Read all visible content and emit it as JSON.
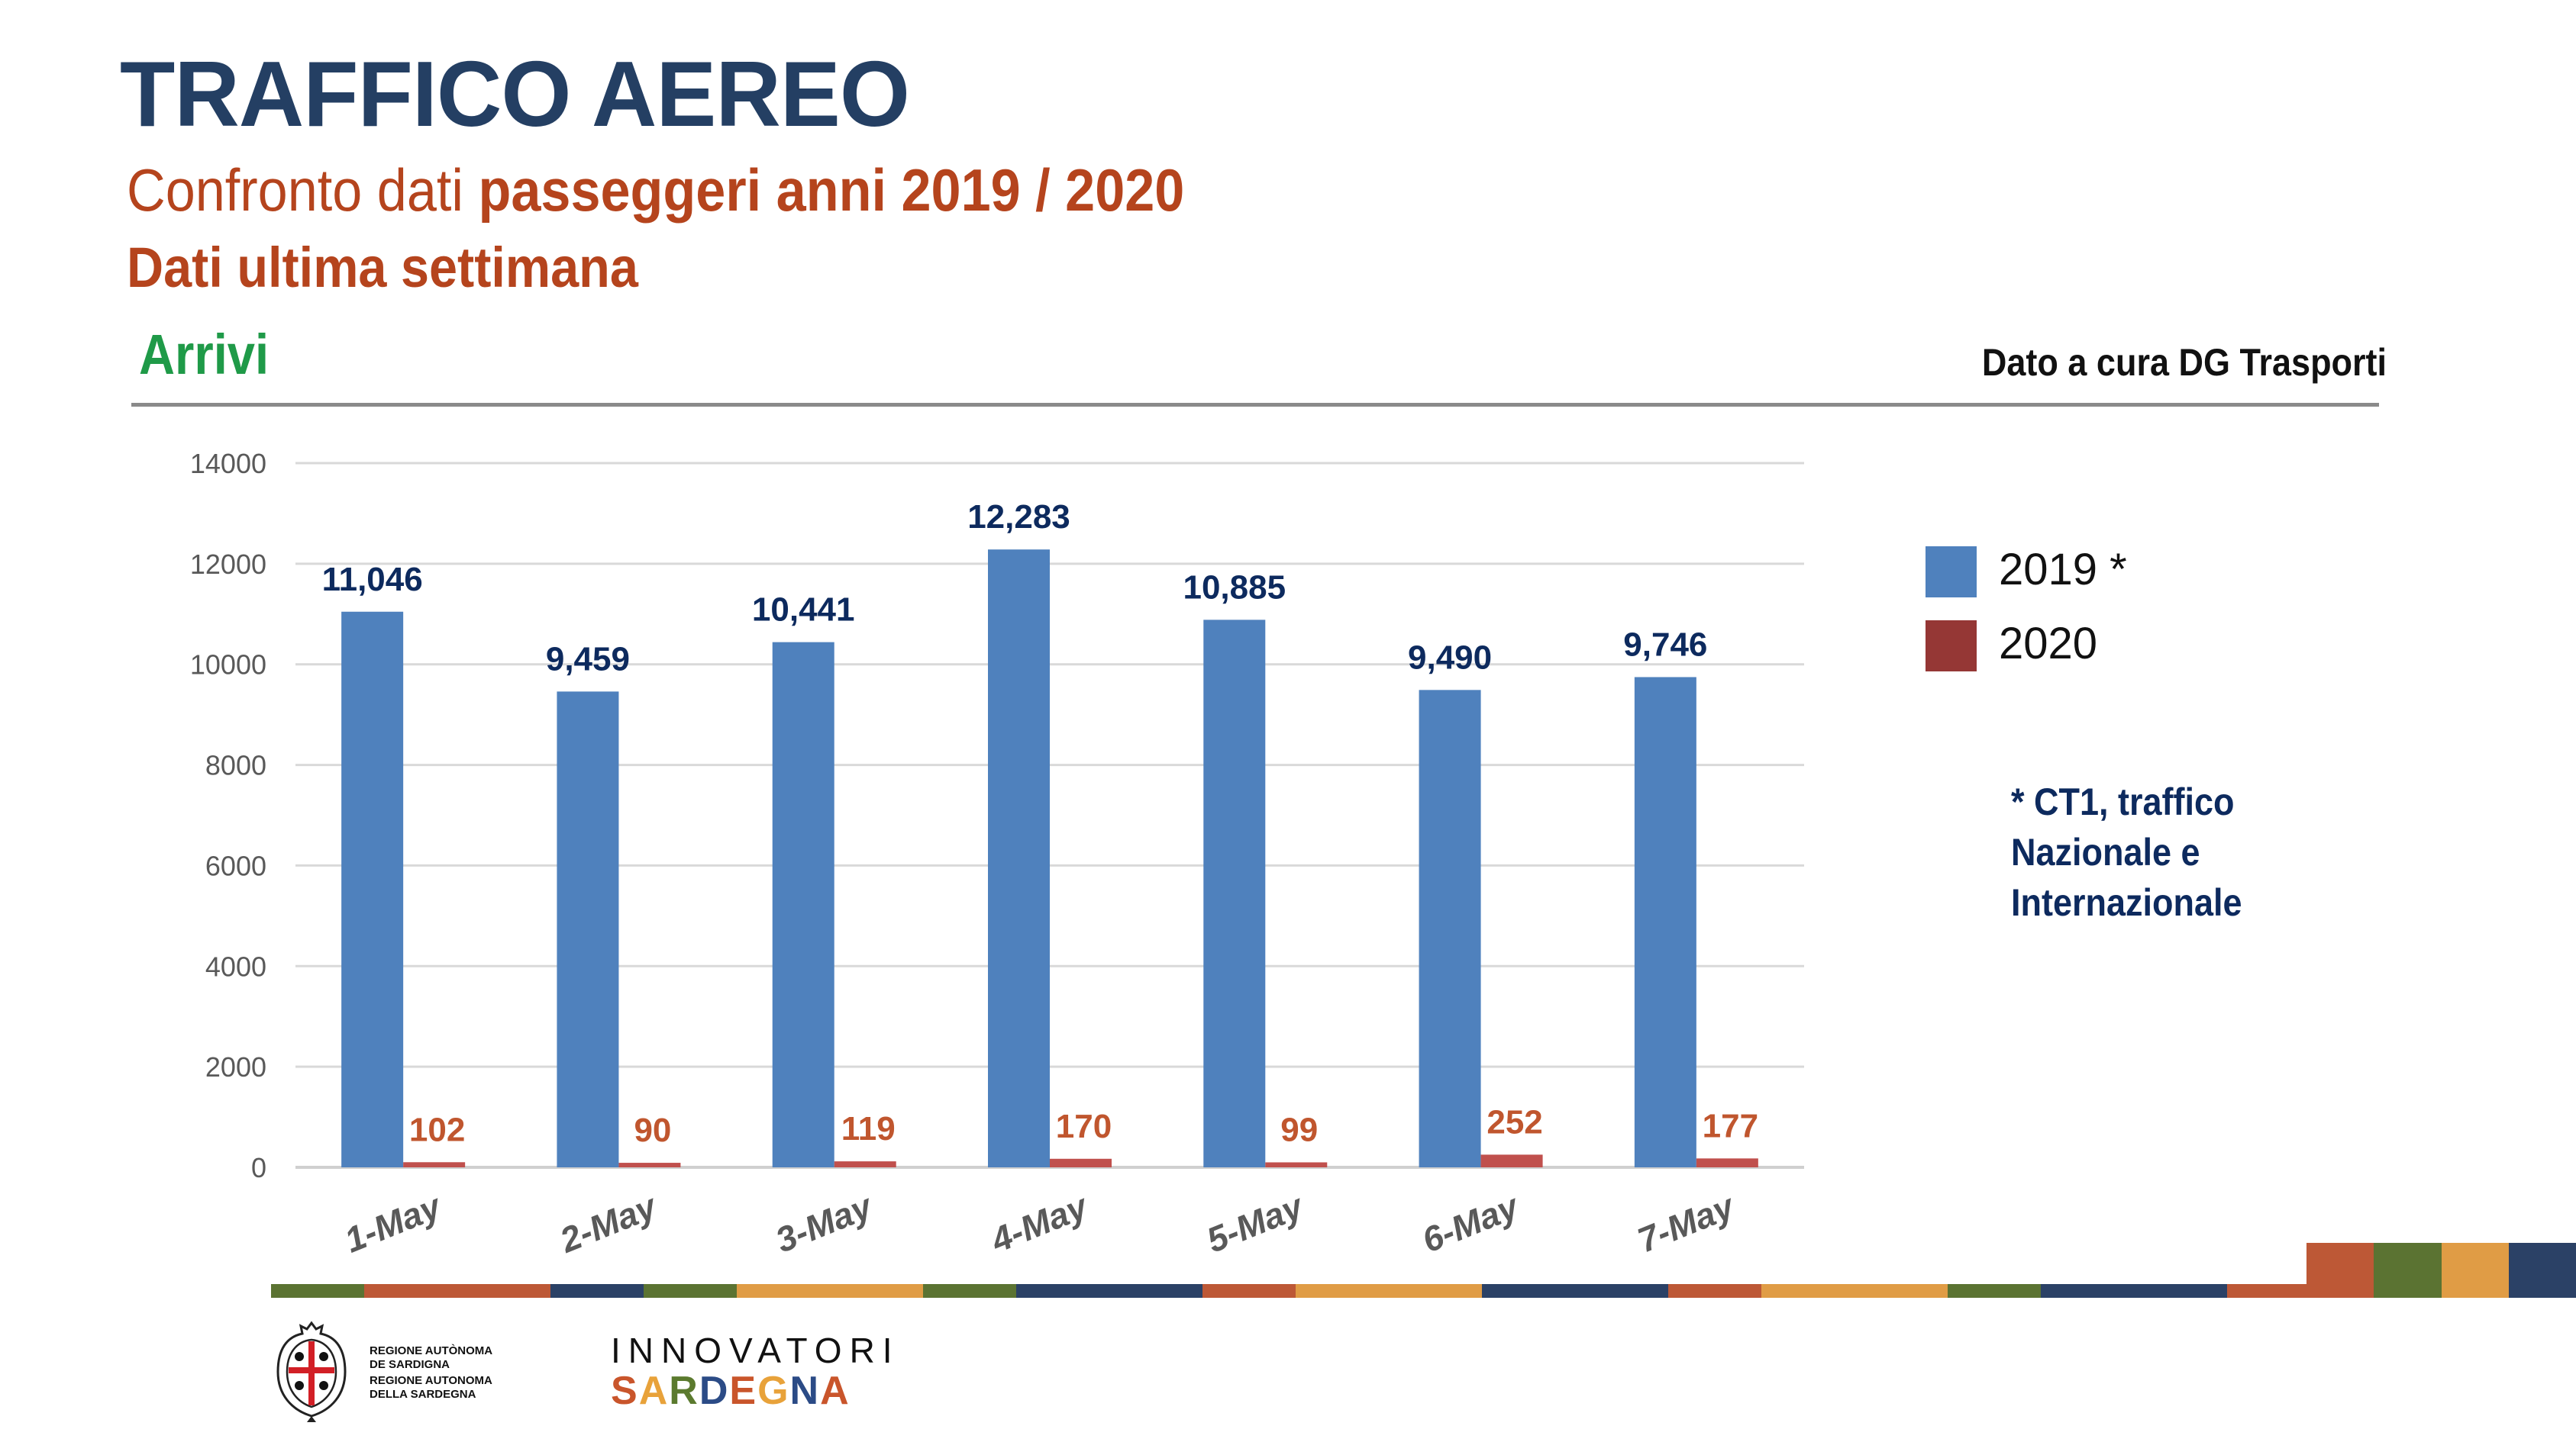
{
  "header": {
    "title": "TRAFFICO AEREO",
    "subtitle_light": "Confronto dati ",
    "subtitle_bold": "passeggeri anni 2019 / 2020",
    "subtitle2": "Dati ultima settimana",
    "section": "Arrivi",
    "credit": "Dato a cura DG Trasporti"
  },
  "colors": {
    "title": "#243f63",
    "subtitle": "#b5441d",
    "section": "#1f9a48",
    "series_2019": "#4f81bd",
    "series_2020": "#c0504d",
    "legend_2020": "#953735",
    "label_2019": "#0d2a5e",
    "label_2020": "#c0562e"
  },
  "legend": {
    "items": [
      {
        "label": "2019 *",
        "color": "#4f81bd"
      },
      {
        "label": "2020",
        "color": "#953735"
      }
    ]
  },
  "footnote": {
    "lines": [
      "* CT1, traffico",
      "Nazionale e",
      "Internazionale"
    ]
  },
  "chart_data": {
    "type": "bar",
    "title": "Arrivi",
    "xlabel": "",
    "ylabel": "",
    "categories": [
      "1-May",
      "2-May",
      "3-May",
      "4-May",
      "5-May",
      "6-May",
      "7-May"
    ],
    "series": [
      {
        "name": "2019 *",
        "values": [
          11046,
          9459,
          10441,
          12283,
          10885,
          9490,
          9746
        ],
        "labels": [
          "11,046",
          "9,459",
          "10,441",
          "12,283",
          "10,885",
          "9,490",
          "9,746"
        ]
      },
      {
        "name": "2020",
        "values": [
          102,
          90,
          119,
          170,
          99,
          252,
          177
        ],
        "labels": [
          "102",
          "90",
          "119",
          "170",
          "99",
          "252",
          "177"
        ]
      }
    ],
    "ylim": [
      0,
      14000
    ],
    "yticks": [
      0,
      2000,
      4000,
      6000,
      8000,
      10000,
      12000,
      14000
    ],
    "grid": true,
    "legend_position": "right"
  },
  "footer": {
    "stripe_colors": [
      "#5b7332",
      "#bd5836",
      "#bd5836",
      "#2b4166",
      "#5b7332",
      "#e09c45",
      "#e09c45",
      "#5b7332",
      "#2b4166",
      "#2b4166",
      "#bd5836",
      "#e09c45",
      "#e09c45",
      "#2b4166",
      "#2b4166",
      "#bd5836",
      "#e09c45",
      "#e09c45",
      "#5b7332",
      "#2b4166",
      "#2b4166",
      "#bd5836"
    ],
    "block_colors": [
      "#bd5836",
      "#5b7332",
      "#e09c45",
      "#2b4166"
    ],
    "region_logo_lines": [
      "REGIONE AUTÒNOMA",
      "DE SARDIGNA",
      "REGIONE AUTONOMA",
      "DELLA SARDEGNA"
    ],
    "innovatori_top": "INNOVATORI",
    "innovatori_bottom": "SARDEGNA",
    "innovatori_letter_colors": [
      "#c9552b",
      "#e8a23a",
      "#5b7a2e",
      "#2b4b86",
      "#c9552b",
      "#e8a23a",
      "#2b4b86",
      "#c9552b"
    ]
  }
}
